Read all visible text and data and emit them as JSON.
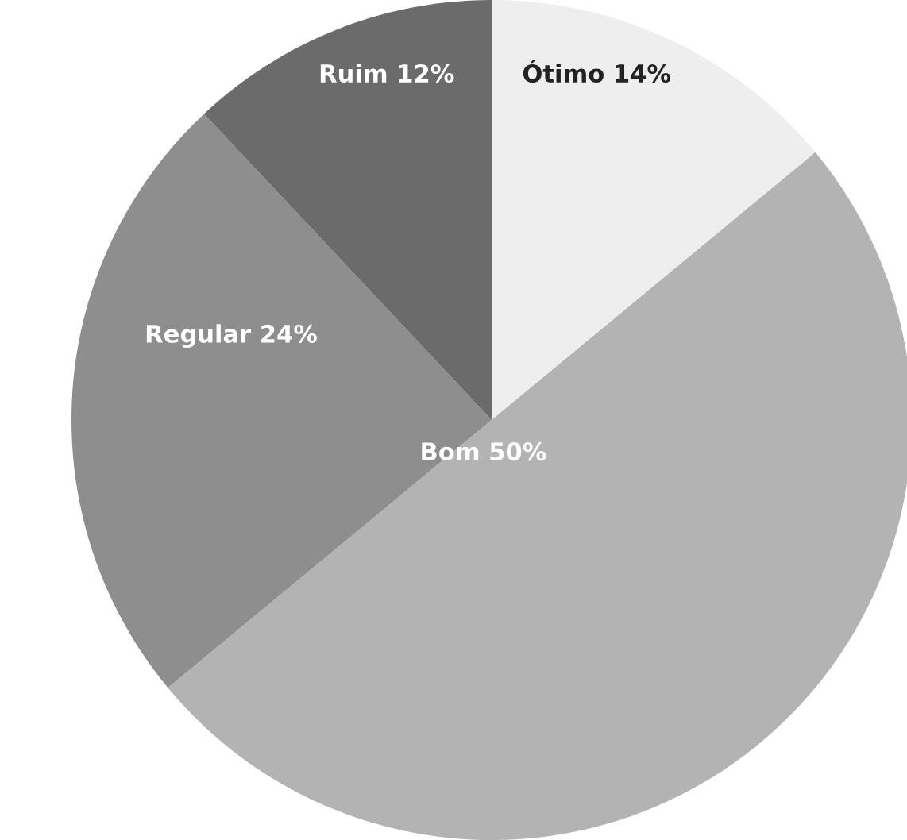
{
  "chart_data": {
    "type": "pie",
    "categories": [
      "Ótimo",
      "Bom",
      "Regular",
      "Ruim"
    ],
    "values": [
      14,
      50,
      24,
      12
    ],
    "value_labels": [
      "14%",
      "50%",
      "24%",
      "12%"
    ],
    "colors": [
      "#eeeeee",
      "#b3b3b3",
      "#8e8e8e",
      "#6b6b6b"
    ]
  }
}
